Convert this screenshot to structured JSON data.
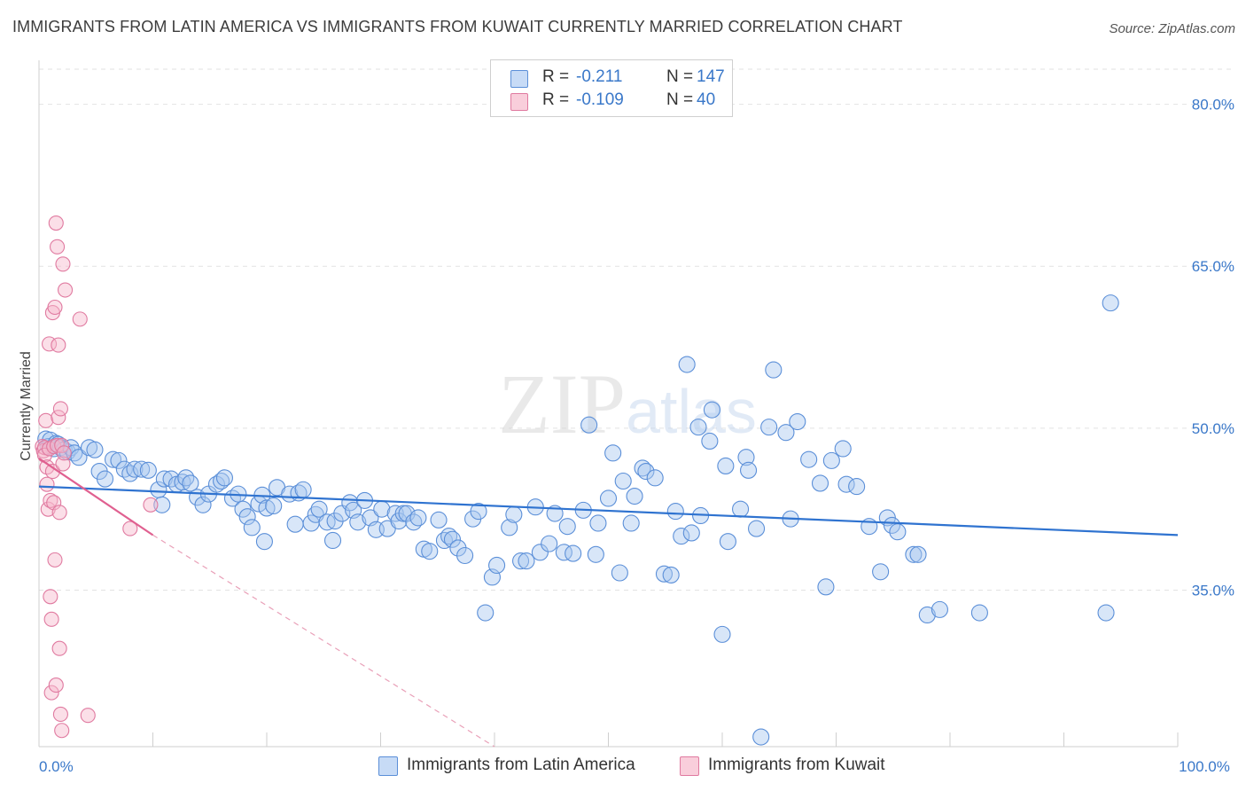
{
  "title": "IMMIGRANTS FROM LATIN AMERICA VS IMMIGRANTS FROM KUWAIT CURRENTLY MARRIED CORRELATION CHART",
  "source": "Source: ZipAtlas.com",
  "watermark": "ZIPatlas",
  "legend": {
    "rows": [
      {
        "r_label": "R =",
        "r_value": "-0.211",
        "n_label": "N =",
        "n_value": "147",
        "color": "#a9c8f0",
        "border": "#5b8fd8"
      },
      {
        "r_label": "R =",
        "r_value": "-0.109",
        "n_label": "N =",
        "n_value": "40",
        "color": "#f7b8cc",
        "border": "#e07aa0"
      }
    ]
  },
  "bottom_legend": [
    {
      "label": "Immigrants from Latin America",
      "color": "#a9c8f0",
      "border": "#5b8fd8"
    },
    {
      "label": "Immigrants from Kuwait",
      "color": "#f7b8cc",
      "border": "#e07aa0"
    }
  ],
  "chart_data": {
    "type": "scatter",
    "ylabel": "Currently Married",
    "xlim": [
      0,
      100
    ],
    "ylim": [
      20.5,
      83.5
    ],
    "x_tick_labels": [
      {
        "value": 0,
        "label": "0.0%"
      },
      {
        "value": 100,
        "label": "100.0%"
      }
    ],
    "y_tick_labels": [
      {
        "value": 80,
        "label": "80.0%"
      },
      {
        "value": 65,
        "label": "65.0%"
      },
      {
        "value": 50,
        "label": "50.0%"
      },
      {
        "value": 35,
        "label": "35.0%"
      }
    ],
    "grid": true,
    "series": [
      {
        "name": "Immigrants from Latin America",
        "color": "#a9c8f0",
        "stroke": "#5b8fd8",
        "trend": {
          "x": [
            0,
            100
          ],
          "y": [
            44.6,
            40.1
          ],
          "color": "#2f73d0"
        },
        "points": [
          [
            0.6,
            49.0
          ],
          [
            0.8,
            48.3
          ],
          [
            1.0,
            48.9
          ],
          [
            1.3,
            48.1
          ],
          [
            1.5,
            48.6
          ],
          [
            1.7,
            48.5
          ],
          [
            1.9,
            48.2
          ],
          [
            2.2,
            48.0
          ],
          [
            2.5,
            47.8
          ],
          [
            2.8,
            48.2
          ],
          [
            3.1,
            47.7
          ],
          [
            3.5,
            47.3
          ],
          [
            4.4,
            48.2
          ],
          [
            4.9,
            48.0
          ],
          [
            5.3,
            46.0
          ],
          [
            5.8,
            45.3
          ],
          [
            6.5,
            47.1
          ],
          [
            7.0,
            47.0
          ],
          [
            7.5,
            46.2
          ],
          [
            8.0,
            45.8
          ],
          [
            8.4,
            46.2
          ],
          [
            9.0,
            46.2
          ],
          [
            9.6,
            46.1
          ],
          [
            10.5,
            44.3
          ],
          [
            10.8,
            42.9
          ],
          [
            11.0,
            45.3
          ],
          [
            11.6,
            45.3
          ],
          [
            12.1,
            44.8
          ],
          [
            12.6,
            45.0
          ],
          [
            12.9,
            45.4
          ],
          [
            13.3,
            44.9
          ],
          [
            13.9,
            43.6
          ],
          [
            14.4,
            42.9
          ],
          [
            14.9,
            43.9
          ],
          [
            15.6,
            44.8
          ],
          [
            16.0,
            45.1
          ],
          [
            16.3,
            45.4
          ],
          [
            17.0,
            43.5
          ],
          [
            17.5,
            43.9
          ],
          [
            17.9,
            42.5
          ],
          [
            18.3,
            41.8
          ],
          [
            18.7,
            40.8
          ],
          [
            19.3,
            43.0
          ],
          [
            19.6,
            43.8
          ],
          [
            19.8,
            39.5
          ],
          [
            20.0,
            42.6
          ],
          [
            20.6,
            42.8
          ],
          [
            20.9,
            44.5
          ],
          [
            22.0,
            43.9
          ],
          [
            22.5,
            41.1
          ],
          [
            22.8,
            44.0
          ],
          [
            23.2,
            44.3
          ],
          [
            23.9,
            41.2
          ],
          [
            24.3,
            42.0
          ],
          [
            24.6,
            42.5
          ],
          [
            25.3,
            41.3
          ],
          [
            25.8,
            39.6
          ],
          [
            26.0,
            41.4
          ],
          [
            26.6,
            42.1
          ],
          [
            27.3,
            43.1
          ],
          [
            27.6,
            42.4
          ],
          [
            28.0,
            41.3
          ],
          [
            28.6,
            43.3
          ],
          [
            29.1,
            41.7
          ],
          [
            29.6,
            40.6
          ],
          [
            30.1,
            42.5
          ],
          [
            30.6,
            40.7
          ],
          [
            31.3,
            42.1
          ],
          [
            31.6,
            41.4
          ],
          [
            32.0,
            42.1
          ],
          [
            32.3,
            42.1
          ],
          [
            32.9,
            41.3
          ],
          [
            33.3,
            41.7
          ],
          [
            33.8,
            38.8
          ],
          [
            34.3,
            38.6
          ],
          [
            35.1,
            41.5
          ],
          [
            35.6,
            39.6
          ],
          [
            36.0,
            40.0
          ],
          [
            36.3,
            39.7
          ],
          [
            36.8,
            38.9
          ],
          [
            37.4,
            38.2
          ],
          [
            38.1,
            41.6
          ],
          [
            38.6,
            42.3
          ],
          [
            39.2,
            32.9
          ],
          [
            39.8,
            36.2
          ],
          [
            40.2,
            37.3
          ],
          [
            41.3,
            40.8
          ],
          [
            41.7,
            42.0
          ],
          [
            42.3,
            37.7
          ],
          [
            42.8,
            37.7
          ],
          [
            43.6,
            42.7
          ],
          [
            44.0,
            38.5
          ],
          [
            44.8,
            39.3
          ],
          [
            45.3,
            42.1
          ],
          [
            46.1,
            38.5
          ],
          [
            46.4,
            40.9
          ],
          [
            46.9,
            38.4
          ],
          [
            47.8,
            42.4
          ],
          [
            48.3,
            50.3
          ],
          [
            48.9,
            38.3
          ],
          [
            49.1,
            41.2
          ],
          [
            50.0,
            43.5
          ],
          [
            50.4,
            47.7
          ],
          [
            51.0,
            36.6
          ],
          [
            51.3,
            45.1
          ],
          [
            52.0,
            41.2
          ],
          [
            52.3,
            43.7
          ],
          [
            53.0,
            46.3
          ],
          [
            53.3,
            46.0
          ],
          [
            54.1,
            45.4
          ],
          [
            54.9,
            36.5
          ],
          [
            55.5,
            36.4
          ],
          [
            55.9,
            42.3
          ],
          [
            56.4,
            40.0
          ],
          [
            56.9,
            55.9
          ],
          [
            57.3,
            40.3
          ],
          [
            57.9,
            50.1
          ],
          [
            58.1,
            41.9
          ],
          [
            58.9,
            48.8
          ],
          [
            59.1,
            51.7
          ],
          [
            60.0,
            30.9
          ],
          [
            60.3,
            46.5
          ],
          [
            60.5,
            39.5
          ],
          [
            61.6,
            42.5
          ],
          [
            62.1,
            47.3
          ],
          [
            62.3,
            46.1
          ],
          [
            63.0,
            40.7
          ],
          [
            64.1,
            50.1
          ],
          [
            64.5,
            55.4
          ],
          [
            65.6,
            49.6
          ],
          [
            66.0,
            41.6
          ],
          [
            66.6,
            50.6
          ],
          [
            67.6,
            47.1
          ],
          [
            68.6,
            44.9
          ],
          [
            69.1,
            35.3
          ],
          [
            69.6,
            47.0
          ],
          [
            70.6,
            48.1
          ],
          [
            70.9,
            44.8
          ],
          [
            71.8,
            44.6
          ],
          [
            72.9,
            40.9
          ],
          [
            73.9,
            36.7
          ],
          [
            74.5,
            41.7
          ],
          [
            74.9,
            41.0
          ],
          [
            75.4,
            40.4
          ],
          [
            76.8,
            38.3
          ],
          [
            77.2,
            38.3
          ],
          [
            78.0,
            32.7
          ],
          [
            79.1,
            33.2
          ],
          [
            82.6,
            32.9
          ],
          [
            93.7,
            32.9
          ],
          [
            94.1,
            61.6
          ],
          [
            63.4,
            21.4
          ]
        ]
      },
      {
        "name": "Immigrants from Kuwait",
        "color": "#f7b8cc",
        "stroke": "#e07aa0",
        "trend": {
          "x": [
            0,
            10
          ],
          "y": [
            47.2,
            40.1
          ],
          "color": "#e06090"
        },
        "trend_dashed": {
          "x": [
            10,
            40
          ],
          "y": [
            40.1,
            20.5
          ],
          "color": "#e9a0b8"
        },
        "points": [
          [
            0.3,
            48.3
          ],
          [
            0.4,
            47.9
          ],
          [
            0.5,
            48.2
          ],
          [
            0.5,
            47.5
          ],
          [
            0.6,
            50.7
          ],
          [
            0.7,
            46.4
          ],
          [
            0.7,
            44.8
          ],
          [
            0.8,
            42.5
          ],
          [
            0.9,
            57.8
          ],
          [
            0.9,
            48.1
          ],
          [
            1.0,
            43.3
          ],
          [
            1.1,
            32.3
          ],
          [
            1.0,
            34.4
          ],
          [
            1.1,
            25.5
          ],
          [
            1.2,
            60.7
          ],
          [
            1.2,
            46.0
          ],
          [
            1.3,
            43.1
          ],
          [
            1.3,
            48.3
          ],
          [
            1.4,
            61.2
          ],
          [
            1.4,
            37.8
          ],
          [
            1.5,
            26.2
          ],
          [
            1.5,
            69.0
          ],
          [
            1.6,
            66.8
          ],
          [
            1.6,
            48.4
          ],
          [
            1.7,
            57.7
          ],
          [
            1.7,
            51.0
          ],
          [
            1.8,
            42.2
          ],
          [
            1.8,
            29.6
          ],
          [
            1.9,
            51.8
          ],
          [
            1.9,
            23.5
          ],
          [
            2.0,
            48.4
          ],
          [
            2.0,
            22.0
          ],
          [
            2.1,
            65.2
          ],
          [
            2.1,
            46.7
          ],
          [
            2.3,
            62.8
          ],
          [
            3.6,
            60.1
          ],
          [
            4.3,
            23.4
          ],
          [
            2.2,
            47.7
          ],
          [
            8.0,
            40.7
          ],
          [
            9.8,
            42.9
          ]
        ]
      }
    ]
  }
}
